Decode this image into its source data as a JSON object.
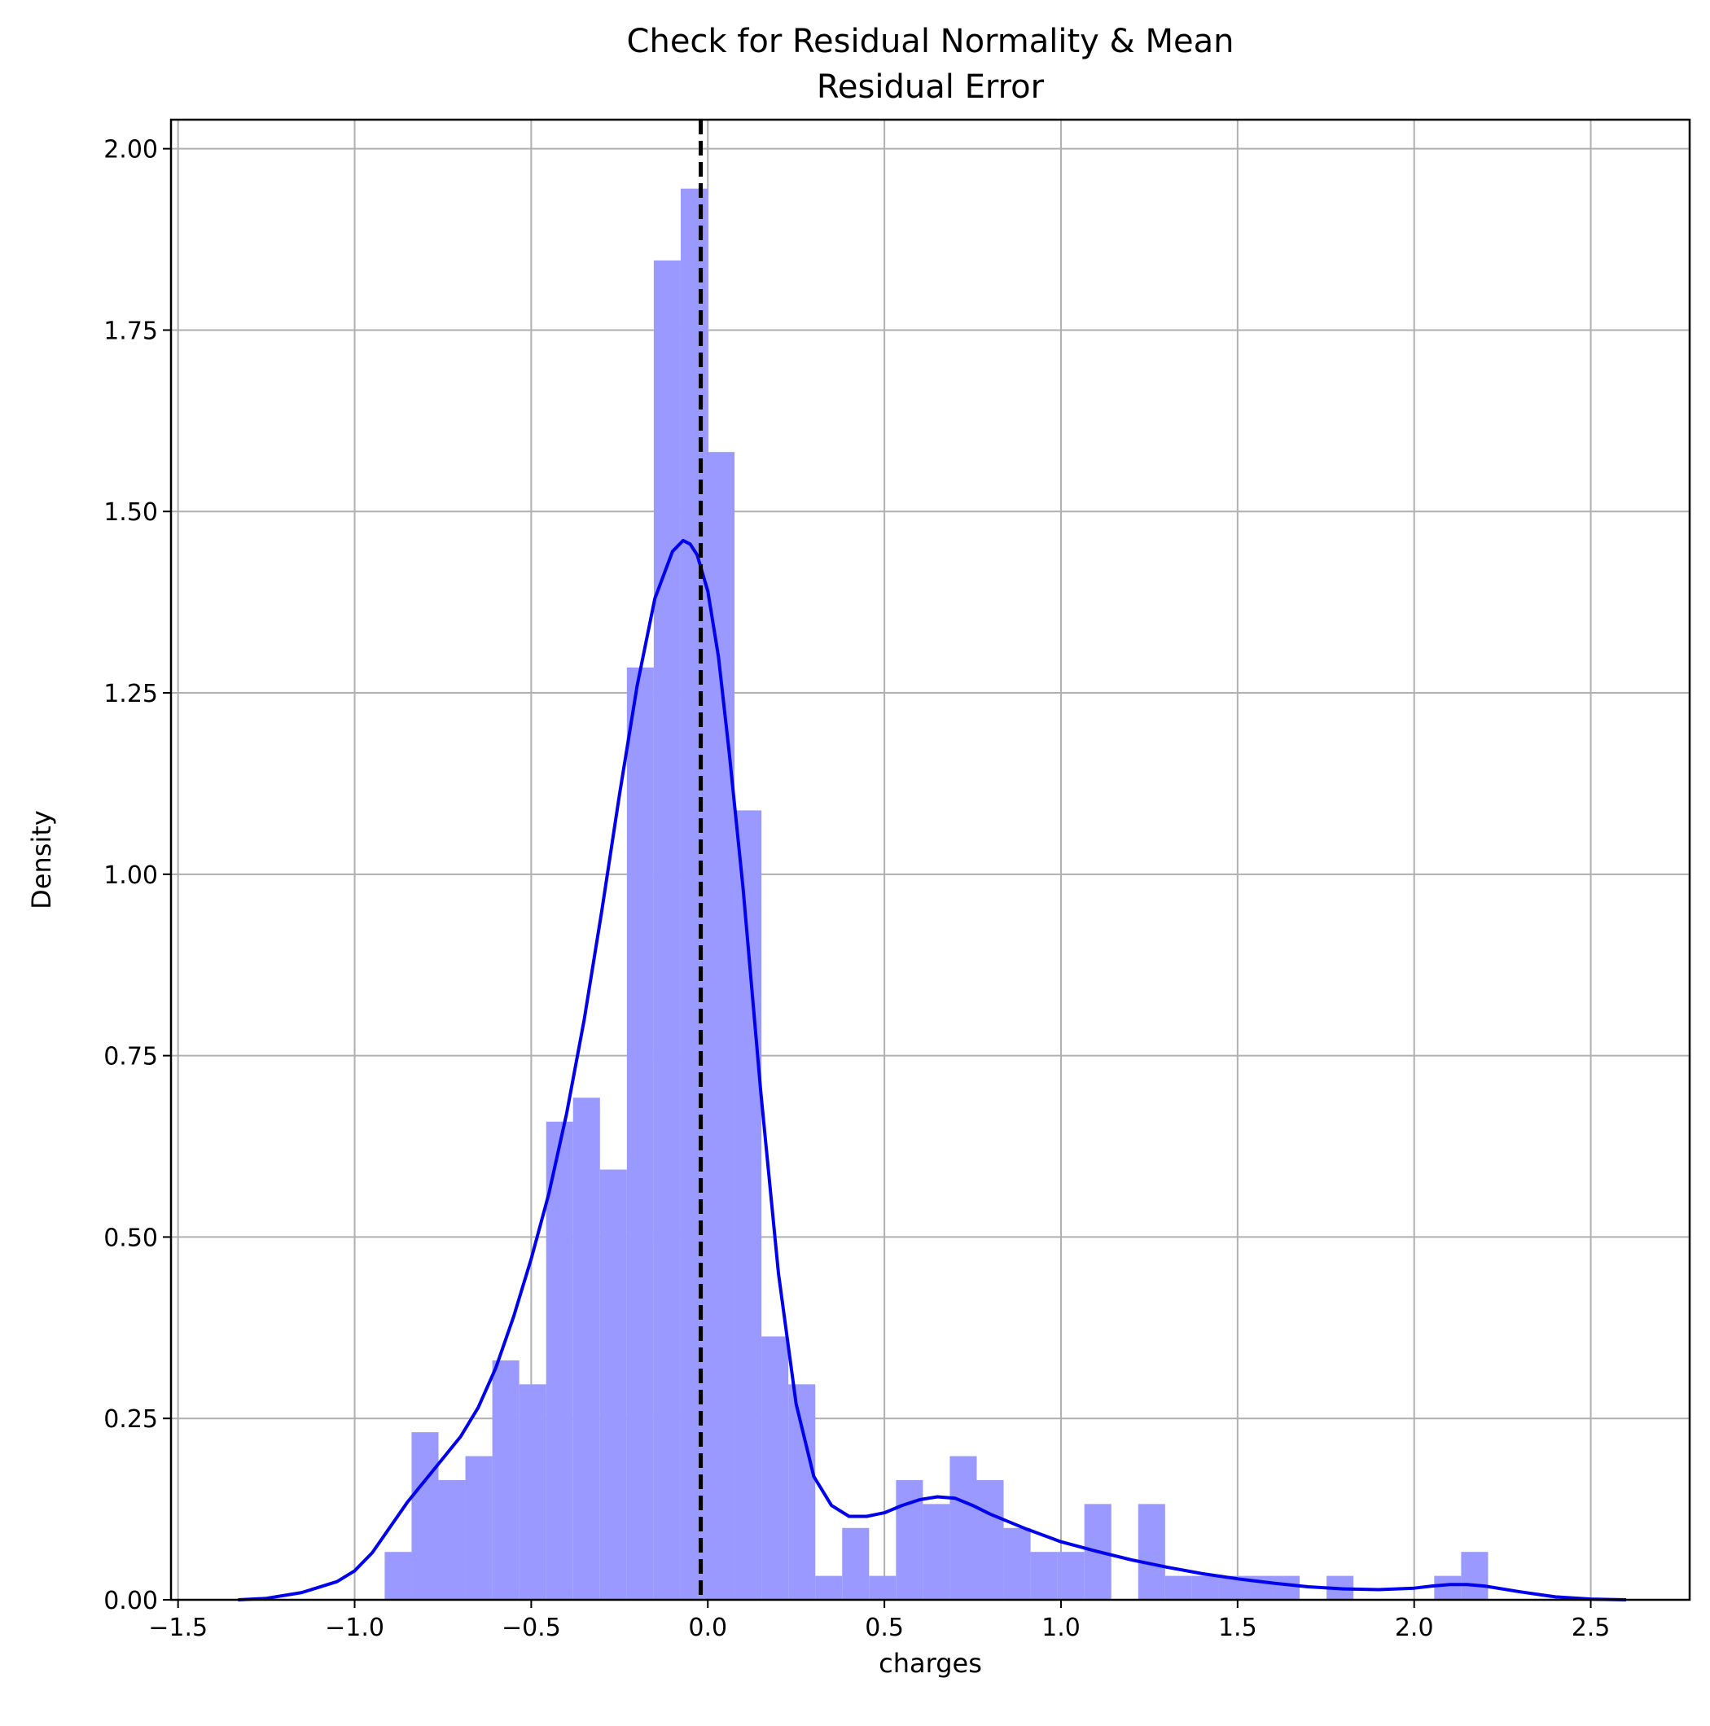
{
  "chart_data": {
    "type": "bar",
    "title_lines": [
      "Check for Residual Normality & Mean",
      "Residual Error"
    ],
    "xlabel": "charges",
    "ylabel": "Density",
    "xlim": [
      -1.52,
      2.78
    ],
    "ylim": [
      0,
      2.04
    ],
    "grid": true,
    "x_ticks": [
      -1.5,
      -1.0,
      -0.5,
      0.0,
      0.5,
      1.0,
      1.5,
      2.0,
      2.5
    ],
    "x_tick_labels": [
      "−1.5",
      "−1.0",
      "−0.5",
      "0.0",
      "0.5",
      "1.0",
      "1.5",
      "2.0",
      "2.5"
    ],
    "y_ticks": [
      0,
      0.25,
      0.5,
      0.75,
      1.0,
      1.25,
      1.5,
      1.75,
      2.0
    ],
    "y_tick_labels": [
      "0.00",
      "0.25",
      "0.50",
      "0.75",
      "1.00",
      "1.25",
      "1.50",
      "1.75",
      "2.00"
    ],
    "histogram": {
      "color": "#9999ff",
      "bin_start": -0.915,
      "bin_width": 0.0762,
      "values": [
        0.066,
        0.231,
        0.165,
        0.198,
        0.33,
        0.297,
        0.659,
        0.692,
        0.593,
        1.285,
        1.846,
        1.945,
        1.582,
        1.088,
        0.363,
        0.297,
        0.033,
        0.099,
        0.033,
        0.165,
        0.132,
        0.198,
        0.165,
        0.099,
        0.066,
        0.066,
        0.132,
        0.0,
        0.132,
        0.033,
        0.033,
        0.033,
        0.033,
        0.033,
        0.0,
        0.033,
        0.0,
        0.0,
        0.0,
        0.033,
        0.066
      ]
    },
    "kde": {
      "color": "#0000ee",
      "x": [
        -1.33,
        -1.25,
        -1.15,
        -1.05,
        -1.0,
        -0.95,
        -0.9,
        -0.85,
        -0.8,
        -0.75,
        -0.7,
        -0.65,
        -0.6,
        -0.55,
        -0.5,
        -0.45,
        -0.4,
        -0.35,
        -0.3,
        -0.25,
        -0.2,
        -0.15,
        -0.1,
        -0.07,
        -0.05,
        -0.03,
        0.0,
        0.03,
        0.06,
        0.1,
        0.15,
        0.2,
        0.25,
        0.3,
        0.35,
        0.4,
        0.45,
        0.5,
        0.55,
        0.6,
        0.65,
        0.7,
        0.75,
        0.8,
        0.9,
        1.0,
        1.1,
        1.2,
        1.3,
        1.4,
        1.5,
        1.6,
        1.7,
        1.8,
        1.9,
        2.0,
        2.05,
        2.1,
        2.15,
        2.2,
        2.3,
        2.4,
        2.5,
        2.6
      ],
      "y": [
        0.0,
        0.002,
        0.01,
        0.025,
        0.04,
        0.065,
        0.1,
        0.135,
        0.165,
        0.195,
        0.225,
        0.265,
        0.32,
        0.39,
        0.47,
        0.56,
        0.67,
        0.8,
        0.95,
        1.11,
        1.26,
        1.38,
        1.445,
        1.46,
        1.455,
        1.44,
        1.39,
        1.3,
        1.17,
        0.98,
        0.7,
        0.45,
        0.27,
        0.17,
        0.13,
        0.115,
        0.115,
        0.12,
        0.13,
        0.138,
        0.142,
        0.14,
        0.13,
        0.118,
        0.098,
        0.08,
        0.067,
        0.055,
        0.045,
        0.036,
        0.029,
        0.023,
        0.018,
        0.015,
        0.014,
        0.016,
        0.019,
        0.021,
        0.021,
        0.019,
        0.011,
        0.004,
        0.001,
        0.0
      ]
    },
    "mean_line": {
      "x": -0.02,
      "color": "#000000",
      "style": "dashed"
    }
  }
}
